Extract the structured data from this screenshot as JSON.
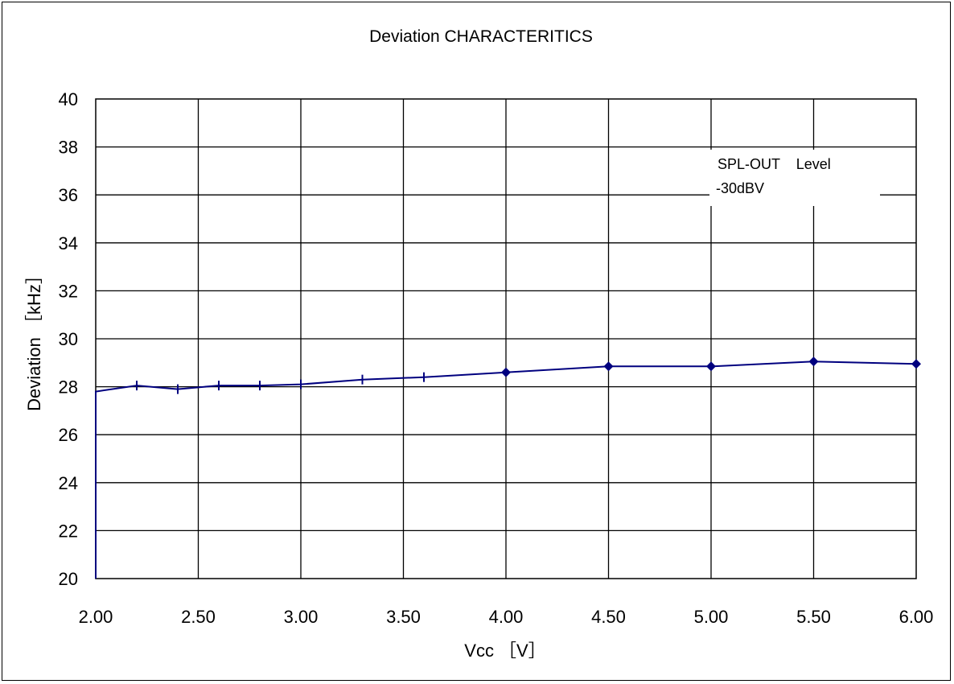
{
  "chart_data": {
    "type": "line",
    "title": "Deviation CHARACTERITICS",
    "xlabel": "Vcc ［V］",
    "ylabel": "Deviation ［kHz］",
    "x_tick_labels": [
      "2.00",
      "2.50",
      "3.00",
      "3.50",
      "4.00",
      "4.50",
      "5.00",
      "5.50",
      "6.00"
    ],
    "y_tick_labels": [
      "20",
      "22",
      "24",
      "26",
      "28",
      "30",
      "32",
      "34",
      "36",
      "38",
      "40"
    ],
    "xlim": [
      2.0,
      6.0
    ],
    "ylim": [
      20,
      40
    ],
    "grid": true,
    "annotation": [
      "SPL-OUT    Level",
      "-30dBV"
    ],
    "series": [
      {
        "color": "#00007f",
        "points": [
          {
            "x": 2.0,
            "y": 20.0,
            "marker": "none"
          },
          {
            "x": 2.0,
            "y": 27.8,
            "marker": "none"
          },
          {
            "x": 2.2,
            "y": 28.05,
            "marker": "dash"
          },
          {
            "x": 2.4,
            "y": 27.9,
            "marker": "dash"
          },
          {
            "x": 2.6,
            "y": 28.05,
            "marker": "dash"
          },
          {
            "x": 2.8,
            "y": 28.05,
            "marker": "dash"
          },
          {
            "x": 3.0,
            "y": 28.1,
            "marker": "dash"
          },
          {
            "x": 3.3,
            "y": 28.3,
            "marker": "dash"
          },
          {
            "x": 3.6,
            "y": 28.4,
            "marker": "dash"
          },
          {
            "x": 4.0,
            "y": 28.6,
            "marker": "diamond"
          },
          {
            "x": 4.5,
            "y": 28.85,
            "marker": "diamond"
          },
          {
            "x": 5.0,
            "y": 28.85,
            "marker": "diamond"
          },
          {
            "x": 5.5,
            "y": 29.05,
            "marker": "diamond"
          },
          {
            "x": 6.0,
            "y": 28.95,
            "marker": "diamond"
          }
        ]
      }
    ]
  }
}
